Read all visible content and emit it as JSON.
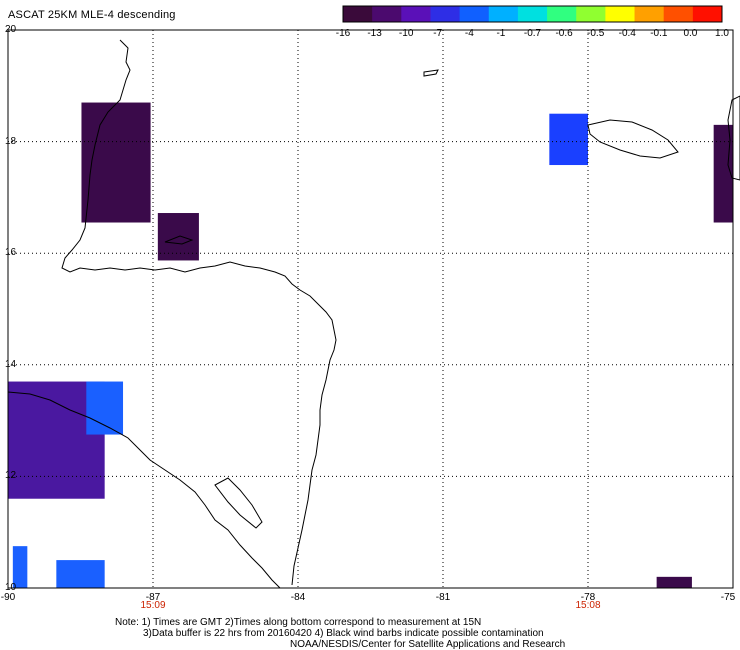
{
  "title": "ASCAT 25KM MLE-4 descending",
  "colorbar": {
    "labels": [
      "-16",
      "-13",
      "-10",
      "-7",
      "-4",
      "-1",
      "-0.7",
      "-0.6",
      "-0.5",
      "-0.4",
      "-0.1",
      "0.0",
      "1.0"
    ],
    "colors": [
      "#3a0a3a",
      "#4b0a6e",
      "#5a10b8",
      "#2e2ee6",
      "#1060ff",
      "#00b0ff",
      "#00e0e0",
      "#30ff80",
      "#90ff30",
      "#ffff00",
      "#ffa000",
      "#ff5000",
      "#ff1000"
    ]
  },
  "lat_labels": [
    {
      "value": "20",
      "y": 20
    },
    {
      "value": "18",
      "y": 18
    },
    {
      "value": "16",
      "y": 16
    },
    {
      "value": "14",
      "y": 14
    },
    {
      "value": "12",
      "y": 12
    },
    {
      "value": "10",
      "y": 10
    }
  ],
  "lon_labels": [
    {
      "value": "-90",
      "x": -90
    },
    {
      "value": "-87",
      "x": -87
    },
    {
      "value": "-84",
      "x": -84
    },
    {
      "value": "-81",
      "x": -81
    },
    {
      "value": "-78",
      "x": -78
    },
    {
      "value": "-75",
      "x": -75
    }
  ],
  "pass_times": [
    {
      "value": "15:09",
      "lon": -87
    },
    {
      "value": "15:08",
      "lon": -78
    }
  ],
  "notes": {
    "line1": "Note: 1) Times are GMT 2)Times along bottom correspond to measurement at 15N",
    "line2": "3)Data buffer is 22 hrs from 20160420 4) Black wind barbs indicate possible contamination",
    "line3": "NOAA/NESDIS/Center for Satellite Applications and Research"
  },
  "swath_cells": [
    {
      "lon0": -88.48,
      "lon1": -87.05,
      "lat0": 16.55,
      "lat1": 18.7,
      "color": "#3a0a4a"
    },
    {
      "lon0": -86.9,
      "lon1": -86.05,
      "lat0": 15.87,
      "lat1": 16.72,
      "color": "#3a0a4a"
    },
    {
      "lon0": -90.0,
      "lon1": -88.0,
      "lat0": 11.6,
      "lat1": 13.7,
      "color": "#4a18a0"
    },
    {
      "lon0": -88.38,
      "lon1": -87.62,
      "lat0": 12.75,
      "lat1": 13.7,
      "color": "#1a60ff"
    },
    {
      "lon0": -89.9,
      "lon1": -89.6,
      "lat0": 10.0,
      "lat1": 10.75,
      "color": "#1a60ff"
    },
    {
      "lon0": -89.0,
      "lon1": -88.0,
      "lat0": 10.0,
      "lat1": 10.5,
      "color": "#1a60ff"
    },
    {
      "lon0": -78.8,
      "lon1": -78.0,
      "lat0": 17.58,
      "lat1": 18.5,
      "color": "#1a40ff"
    },
    {
      "lon0": -75.4,
      "lon1": -75.0,
      "lat0": 16.55,
      "lat1": 18.3,
      "color": "#3a0a4a"
    },
    {
      "lon0": -76.58,
      "lon1": -75.85,
      "lat0": 10.0,
      "lat1": 10.2,
      "color": "#3a0a4a"
    }
  ],
  "colors": {
    "land_outline": "#000000",
    "grid": "#000000",
    "time_label": "#cc2200"
  }
}
